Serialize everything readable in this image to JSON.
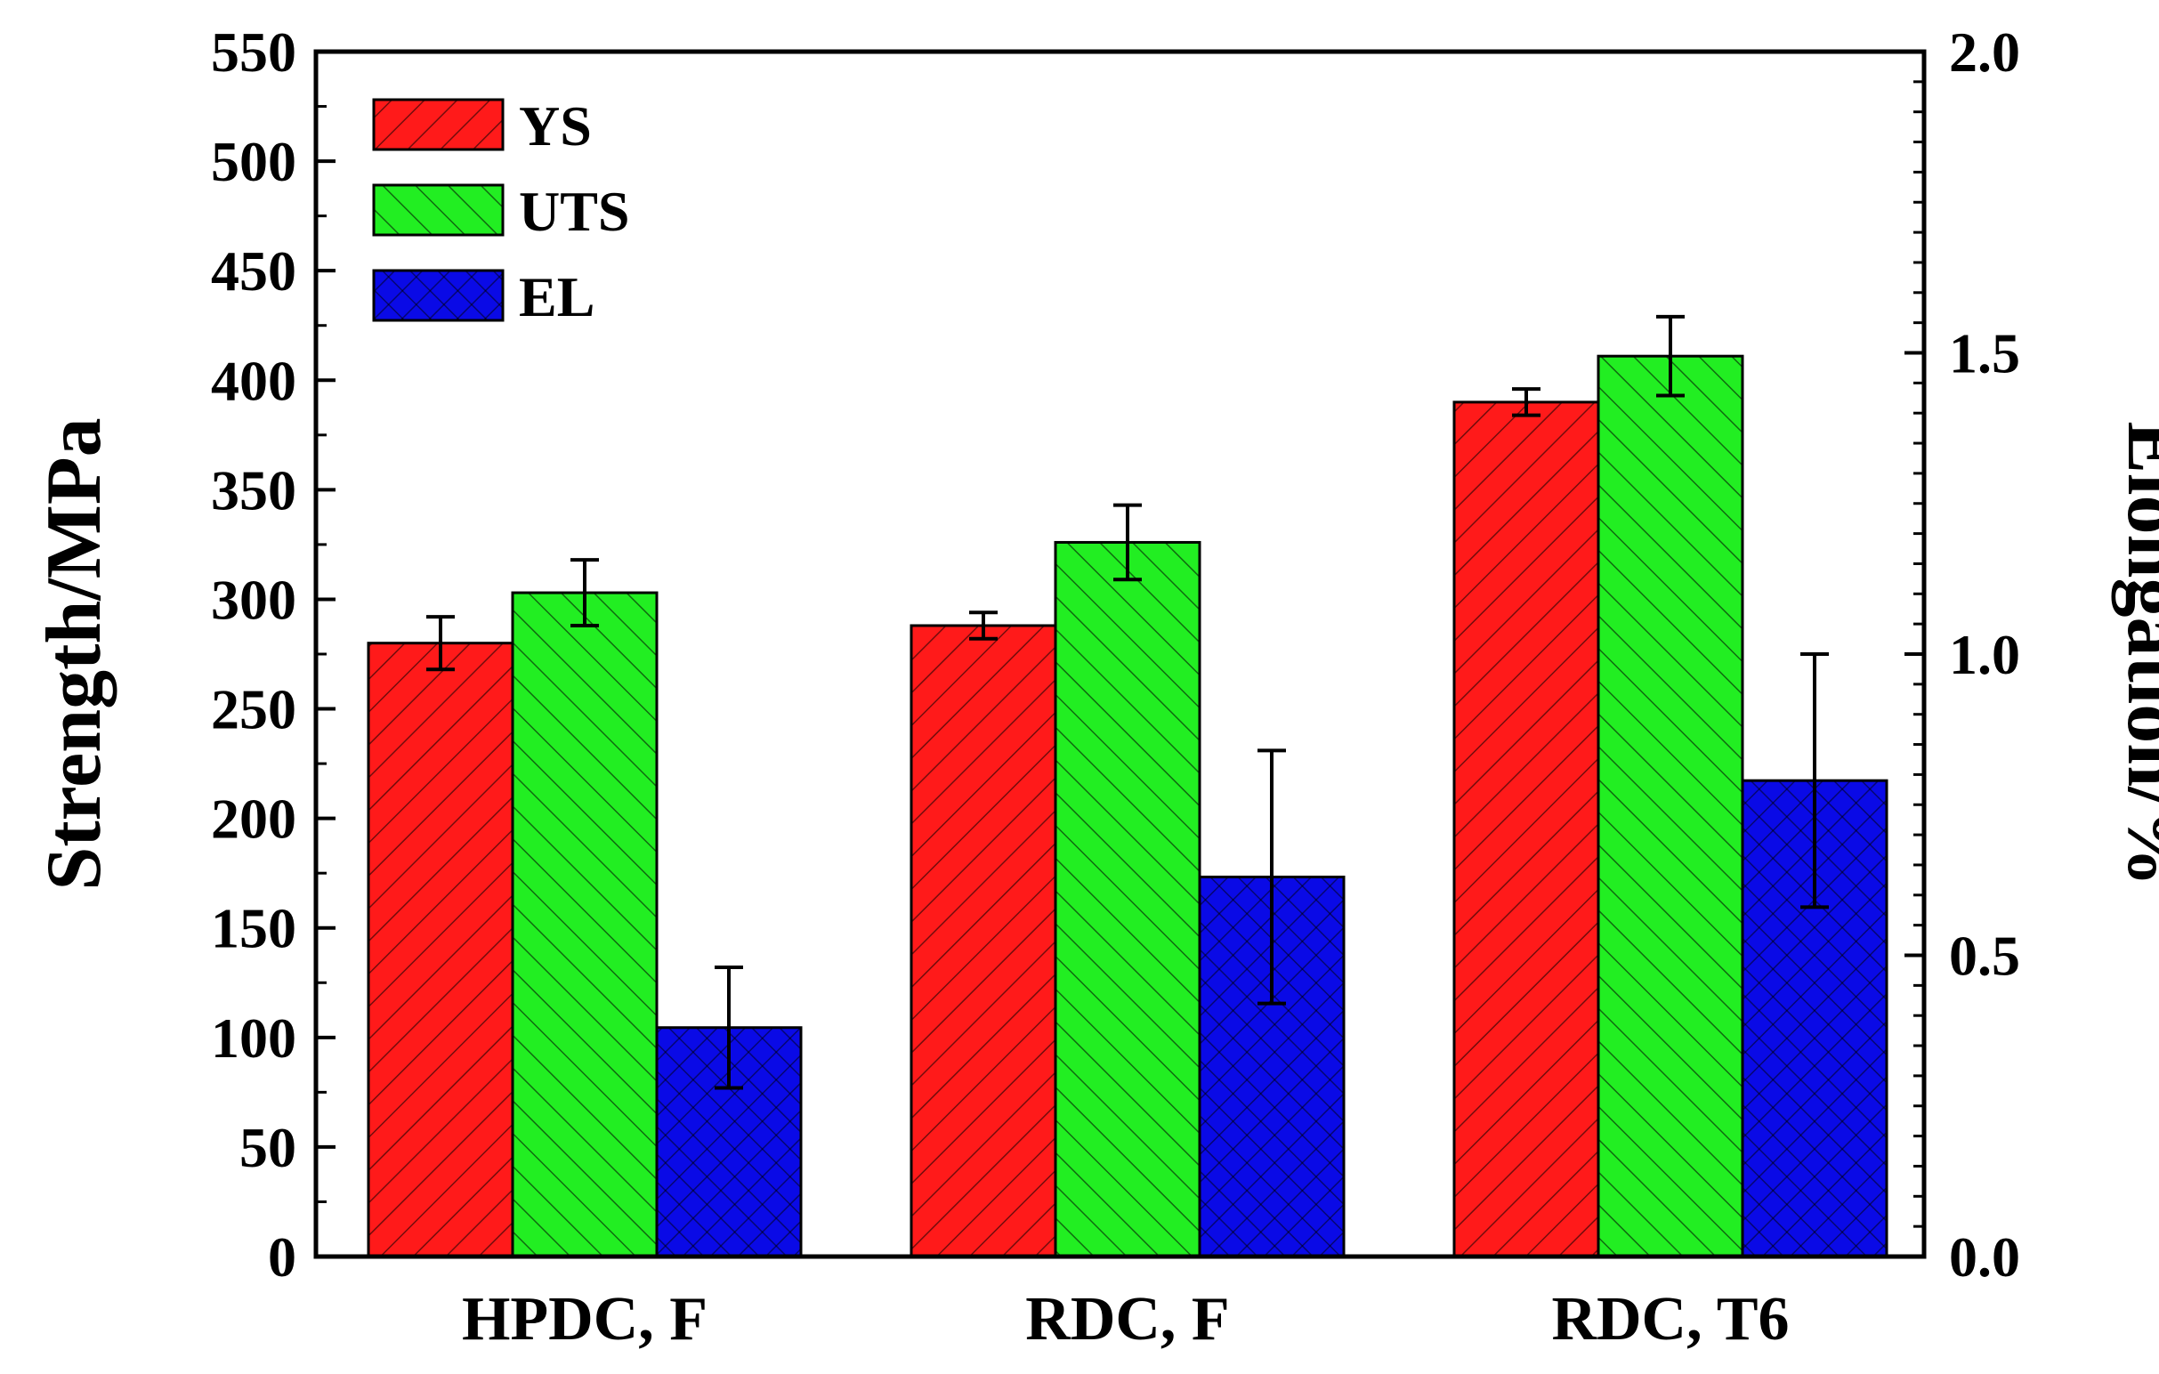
{
  "chart_data": {
    "type": "bar",
    "categories": [
      "HPDC, F",
      "RDC, F",
      "RDC, T6"
    ],
    "left_axis": {
      "label": "Strength/MPa",
      "ylim": [
        0,
        550
      ],
      "ticks": [
        "0",
        "50",
        "100",
        "150",
        "200",
        "250",
        "300",
        "350",
        "400",
        "450",
        "500",
        "550"
      ]
    },
    "right_axis": {
      "label": "Elongation/%",
      "ylim": [
        0,
        2.0
      ],
      "ticks": [
        "0.0",
        "0.5",
        "1.0",
        "1.5",
        "2.0"
      ]
    },
    "series": [
      {
        "name": "YS",
        "axis": "left",
        "color": "#ff1a1a",
        "pattern": "diag-up",
        "values": [
          280,
          288,
          390
        ],
        "errors": [
          12,
          6,
          6
        ]
      },
      {
        "name": "UTS",
        "axis": "left",
        "color": "#22ee22",
        "pattern": "diag-down",
        "values": [
          303,
          326,
          411
        ],
        "errors": [
          15,
          17,
          18
        ]
      },
      {
        "name": "EL",
        "axis": "right",
        "color": "#0a0ae6",
        "pattern": "cross",
        "values": [
          0.38,
          0.63,
          0.79
        ],
        "errors": [
          0.1,
          0.21,
          0.21
        ]
      }
    ],
    "legend_position": "top-left",
    "grid": false
  }
}
